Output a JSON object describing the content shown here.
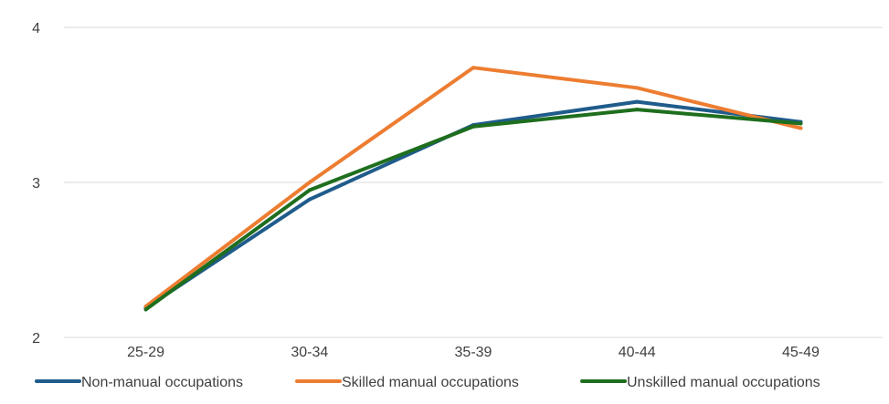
{
  "chart_data": {
    "type": "line",
    "categories": [
      "25-29",
      "30-34",
      "35-39",
      "40-44",
      "45-49"
    ],
    "series": [
      {
        "name": "Non-manual occupations",
        "color": "#1f5c8b",
        "values": [
          2.19,
          2.89,
          3.37,
          3.52,
          3.39
        ]
      },
      {
        "name": "Skilled manual occupations",
        "color": "#ed7d31",
        "values": [
          2.2,
          3.0,
          3.74,
          3.61,
          3.35
        ]
      },
      {
        "name": "Unskilled manual occupations",
        "color": "#1e6e1e",
        "values": [
          2.18,
          2.95,
          3.36,
          3.47,
          3.38
        ]
      }
    ],
    "y_ticks": [
      "2",
      "3",
      "4"
    ],
    "ylim": [
      2,
      4
    ],
    "grid": true,
    "legend_position": "bottom"
  }
}
